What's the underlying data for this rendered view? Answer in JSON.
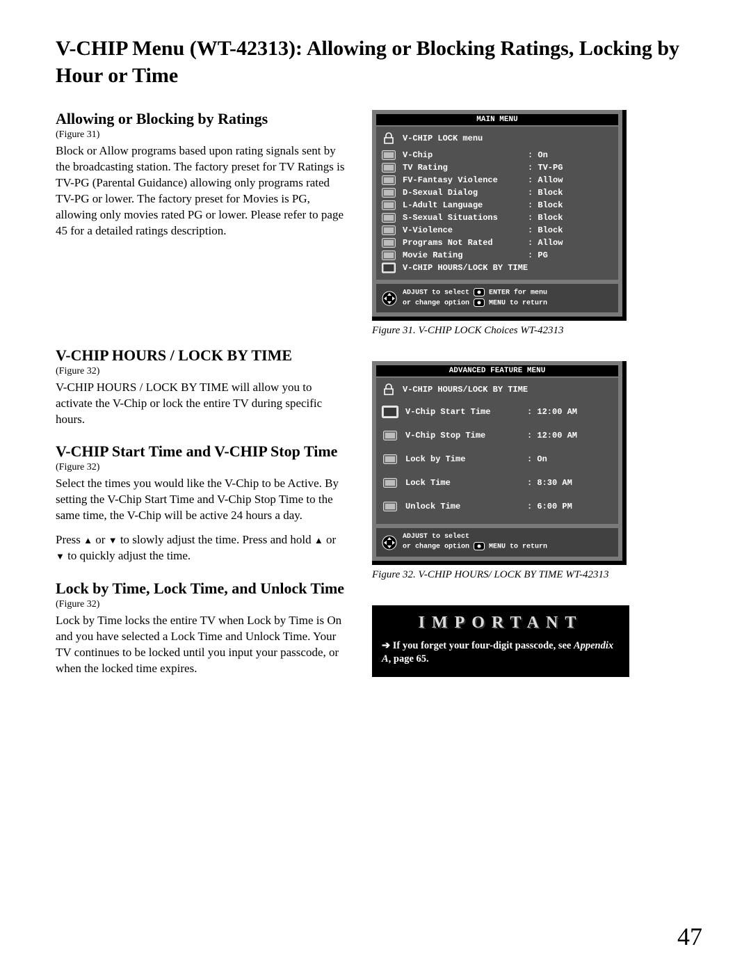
{
  "page_title": "V-CHIP Menu (WT-42313):  Allowing or Blocking Ratings, Locking by Hour or Time",
  "page_number": "47",
  "left": {
    "s1_heading": "Allowing or Blocking  by Ratings",
    "s1_fig": "(Figure 31)",
    "s1_body": "Block or Allow programs based upon rating signals sent by the broadcasting station.  The factory preset for TV Ratings is TV-PG (Parental Guidance) allowing only programs rated TV-PG or lower.  The factory preset for Movies is PG, allowing only movies rated PG or lower.  Please refer to page 45 for a detailed ratings description.",
    "s2_heading": "V-CHIP HOURS / LOCK BY TIME",
    "s2_fig": "(Figure 32)",
    "s2_body": "V-CHIP HOURS / LOCK BY TIME will allow you to activate the V-Chip or lock the entire TV during specific hours.",
    "s3_heading": "V-CHIP Start Time and V-CHIP Stop Time",
    "s3_fig": "(Figure 32)",
    "s3_body1": "Select the times you would like the V-Chip to be Active.  By setting the V-Chip Start Time and V-Chip Stop Time to the same time, the V-Chip will be active 24 hours a day.",
    "s3_body2a": "Press ",
    "s3_body2b": " or  ",
    "s3_body2c": " to slowly adjust the time.  Press and hold ",
    "s3_body2d": " or ",
    "s3_body2e": " to quickly adjust the time.",
    "s4_heading": "Lock by Time, Lock Time, and Unlock Time",
    "s4_fig": "(Figure 32)",
    "s4_body": "Lock by Time locks the entire TV when Lock by Time is On and you have selected a Lock Time and Unlock Time.  Your TV continues to be locked until you input your passcode, or when the locked time expires."
  },
  "fig31": {
    "caption": "Figure 31.  V-CHIP LOCK Choices WT-42313",
    "title": "MAIN MENU",
    "header": "V-CHIP LOCK menu",
    "rows": [
      {
        "label": "V-Chip",
        "value": ": On"
      },
      {
        "label": "TV Rating",
        "value": ": TV-PG"
      },
      {
        "label": "FV-Fantasy Violence",
        "value": ": Allow"
      },
      {
        "label": "D-Sexual Dialog",
        "value": ": Block"
      },
      {
        "label": "L-Adult Language",
        "value": ": Block"
      },
      {
        "label": "S-Sexual Situations",
        "value": ": Block"
      },
      {
        "label": "V-Violence",
        "value": ": Block"
      },
      {
        "label": "Programs Not Rated",
        "value": ": Allow"
      },
      {
        "label": "Movie Rating",
        "value": ": PG"
      },
      {
        "label": "V-CHIP HOURS/LOCK BY TIME",
        "value": ""
      }
    ],
    "hint_l1": "ADJUST to select",
    "hint_l2": "or change option",
    "hint_r1": "ENTER for menu",
    "hint_r2": "MENU to return"
  },
  "fig32": {
    "caption": "Figure 32.  V-CHIP HOURS/ LOCK BY TIME WT-42313",
    "title": "ADVANCED FEATURE MENU",
    "header": "V-CHIP HOURS/LOCK BY TIME",
    "rows": [
      {
        "label": "V-Chip Start Time",
        "value": ": 12:00 AM"
      },
      {
        "label": "V-Chip Stop Time",
        "value": ": 12:00 AM"
      },
      {
        "label": "Lock by Time",
        "value": ": On"
      },
      {
        "label": "Lock Time",
        "value": ":  8:30 AM"
      },
      {
        "label": "Unlock Time",
        "value": ":  6:00 PM"
      }
    ],
    "hint_l1": "ADJUST to select",
    "hint_l2": "or change option",
    "hint_r2": "MENU to return"
  },
  "important": {
    "title": "IMPORTANT",
    "arrow": "➔",
    "text1": " If you forget your four-digit passcode, see ",
    "text_ital": "Appendix A",
    "text2": ", page 65."
  },
  "colors": {
    "menu_outer": "#7a7a7a",
    "menu_inner": "#515151",
    "menu_title_bg": "#000000",
    "hint_bg": "#414141"
  }
}
